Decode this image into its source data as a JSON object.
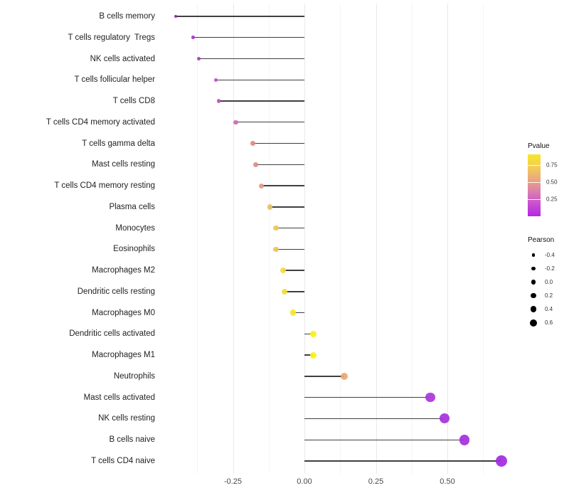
{
  "legend": {
    "pvalue": {
      "title": "Pvalue",
      "ticks": [
        0.75,
        0.5,
        0.25
      ],
      "tick_labels": [
        "0.75",
        "0.50",
        "0.25"
      ],
      "range": [
        0,
        0.91
      ],
      "gradient": [
        "#F7E629",
        "#F3CE55",
        "#EBA87F",
        "#DB7FAC",
        "#C94FD0",
        "#B228E4"
      ]
    },
    "pearson": {
      "title": "Pearson",
      "sizes": [
        -0.4,
        -0.2,
        0.0,
        0.2,
        0.4,
        0.6
      ],
      "size_labels": [
        "-0.4",
        "-0.2",
        "0.0",
        "0.2",
        "0.4",
        "0.6"
      ],
      "dot_color": "#000000"
    }
  },
  "chart_data": {
    "type": "scatter",
    "subtype": "horizontal-lollipop",
    "title": "",
    "xlabel": "",
    "ylabel": "",
    "x_ticks": [
      -0.25,
      0,
      0.25,
      0.5
    ],
    "x_tick_labels": [
      "-0.25",
      "0.00",
      "0.25",
      "0.50"
    ],
    "x_minor_ticks": [
      -0.375,
      -0.125,
      0.125,
      0.375,
      0.625
    ],
    "xlim": [
      -0.506,
      0.736
    ],
    "grid": "vertical-major-and-minor",
    "legend_position": "right",
    "categories": [
      "B cells memory",
      "T cells regulatory  Tregs",
      "NK cells activated",
      "T cells follicular helper",
      "T cells CD8",
      "T cells CD4 memory activated",
      "T cells gamma delta",
      "Mast cells resting",
      "T cells CD4 memory resting",
      "Plasma cells",
      "Monocytes",
      "Eosinophils",
      "Macrophages M2",
      "Dendritic cells resting",
      "Macrophages M0",
      "Dendritic cells activated",
      "Macrophages M1",
      "Neutrophils",
      "Mast cells activated",
      "NK cells resting",
      "B cells naive",
      "T cells CD4 naive"
    ],
    "series": [
      {
        "name": "Pearson",
        "values": [
          -0.45,
          -0.39,
          -0.37,
          -0.31,
          -0.3,
          -0.24,
          -0.18,
          -0.17,
          -0.15,
          -0.12,
          -0.1,
          -0.1,
          -0.075,
          -0.07,
          -0.04,
          0.03,
          0.03,
          0.14,
          0.44,
          0.49,
          0.56,
          0.69
        ]
      }
    ],
    "point_colors": [
      "#8E28AC",
      "#A637CA",
      "#AA3DC8",
      "#BD4FC3",
      "#C355BE",
      "#CE68B0",
      "#DC8B8B",
      "#DD8D87",
      "#E39B7D",
      "#EBBE63",
      "#EEC45A",
      "#EEC45A",
      "#F5DC3C",
      "#F5DD3A",
      "#F7E52B",
      "#F7F214",
      "#F7F214",
      "#ECA872",
      "#A935DC",
      "#A630DC",
      "#A52FDD",
      "#A12BDF"
    ]
  }
}
